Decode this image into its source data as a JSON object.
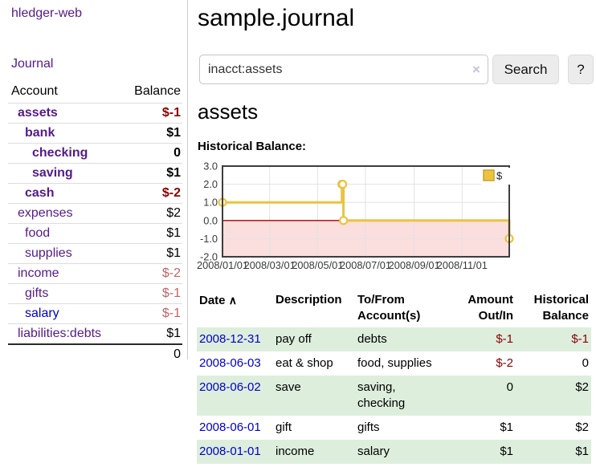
{
  "sidebar": {
    "app_title": "hledger-web",
    "nav": {
      "journal": "Journal"
    },
    "table": {
      "account_header": "Account",
      "balance_header": "Balance",
      "total": "0"
    },
    "accounts": [
      {
        "name": "assets",
        "indent": 1,
        "matched": true,
        "link_style": "purple",
        "balance": "$-1",
        "balance_style": "negative"
      },
      {
        "name": "bank",
        "indent": 2,
        "matched": true,
        "link_style": "purple",
        "balance": "$1",
        "balance_style": "normal"
      },
      {
        "name": "checking",
        "indent": 3,
        "matched": true,
        "link_style": "purple",
        "balance": "0",
        "balance_style": "normal"
      },
      {
        "name": "saving",
        "indent": 3,
        "matched": true,
        "link_style": "purple",
        "balance": "$1",
        "balance_style": "normal"
      },
      {
        "name": "cash",
        "indent": 2,
        "matched": true,
        "link_style": "purple",
        "balance": "$-2",
        "balance_style": "negative"
      },
      {
        "name": "expenses",
        "indent": 1,
        "matched": false,
        "link_style": "purple",
        "balance": "$2",
        "balance_style": "normal"
      },
      {
        "name": "food",
        "indent": 2,
        "matched": false,
        "link_style": "purple",
        "balance": "$1",
        "balance_style": "normal"
      },
      {
        "name": "supplies",
        "indent": 2,
        "matched": false,
        "link_style": "purple",
        "balance": "$1",
        "balance_style": "normal"
      },
      {
        "name": "income",
        "indent": 1,
        "matched": false,
        "link_style": "purple",
        "balance": "$-2",
        "balance_style": "negative-muted"
      },
      {
        "name": "gifts",
        "indent": 2,
        "matched": false,
        "link_style": "purple",
        "balance": "$-1",
        "balance_style": "negative-muted"
      },
      {
        "name": "salary",
        "indent": 2,
        "matched": false,
        "link_style": "blue",
        "balance": "$-1",
        "balance_style": "negative-muted"
      },
      {
        "name": "liabilities:debts",
        "indent": 1,
        "matched": false,
        "link_style": "purple",
        "balance": "$1",
        "balance_style": "normal"
      }
    ]
  },
  "main": {
    "title": "sample.journal",
    "search": {
      "value": "inacct:assets",
      "clear_icon": "×",
      "button": "Search",
      "help_button": "?"
    },
    "account_heading": "assets",
    "chart_label": "Historical Balance:"
  },
  "register": {
    "sort_icon": "∧",
    "headers": {
      "date": "Date",
      "description": "Description",
      "accounts_line1": "To/From",
      "accounts_line2": "Account(s)",
      "amount_line1": "Amount",
      "amount_line2": "Out/In",
      "balance_line1": "Historical",
      "balance_line2": "Balance"
    },
    "rows": [
      {
        "date": "2008-12-31",
        "description": "pay off",
        "accounts": "debts",
        "amount": "$-1",
        "amount_negative": true,
        "balance": "$-1",
        "balance_negative": true
      },
      {
        "date": "2008-06-03",
        "description": "eat & shop",
        "accounts": "food, supplies",
        "amount": "$-2",
        "amount_negative": true,
        "balance": "0",
        "balance_negative": false
      },
      {
        "date": "2008-06-02",
        "description": "save",
        "accounts": "saving, checking",
        "amount": "0",
        "amount_negative": false,
        "balance": "$2",
        "balance_negative": false
      },
      {
        "date": "2008-06-01",
        "description": "gift",
        "accounts": "gifts",
        "amount": "$1",
        "amount_negative": false,
        "balance": "$2",
        "balance_negative": false
      },
      {
        "date": "2008-01-01",
        "description": "income",
        "accounts": "salary",
        "amount": "$1",
        "amount_negative": false,
        "balance": "$1",
        "balance_negative": false
      }
    ]
  },
  "chart_data": {
    "type": "line",
    "title": "Historical Balance:",
    "step": true,
    "x_range": [
      "2008-01-01",
      "2008-12-31"
    ],
    "ylim": [
      -2,
      3
    ],
    "y_ticks": [
      "3.0",
      "2.0",
      "1.0",
      "0.0",
      "-1.0",
      "-2.0"
    ],
    "x_ticks": [
      {
        "date": "2008-01-01",
        "label": "2008/01/01"
      },
      {
        "date": "2008-03-01",
        "label": "2008/03/01"
      },
      {
        "date": "2008-05-01",
        "label": "2008/05/01"
      },
      {
        "date": "2008-07-01",
        "label": "2008/07/01"
      },
      {
        "date": "2008-09-01",
        "label": "2008/09/01"
      },
      {
        "date": "2008-11-01",
        "label": "2008/11/01"
      }
    ],
    "series": [
      {
        "name": "$",
        "color": "#edc240",
        "points": [
          {
            "date": "2008-01-01",
            "value": 1
          },
          {
            "date": "2008-06-01",
            "value": 2
          },
          {
            "date": "2008-06-02",
            "value": 2
          },
          {
            "date": "2008-06-03",
            "value": 0
          },
          {
            "date": "2008-12-31",
            "value": -1
          }
        ]
      }
    ],
    "grid": true,
    "legend_position": "top-right",
    "negative_region_color": "#fbdede",
    "zero_line_color": "#aa0000",
    "grid_color": "#e2e2e2",
    "border_color": "#3d3d3d",
    "tick_label_color": "#3a3a3a"
  },
  "colors": {
    "purple_link": "#551a8b",
    "blue_link": "#0000cc",
    "negative": "#8b0000",
    "negative_muted": "#bb6666",
    "row_stripe": "#ddeedd",
    "series_gold": "#edc240"
  }
}
